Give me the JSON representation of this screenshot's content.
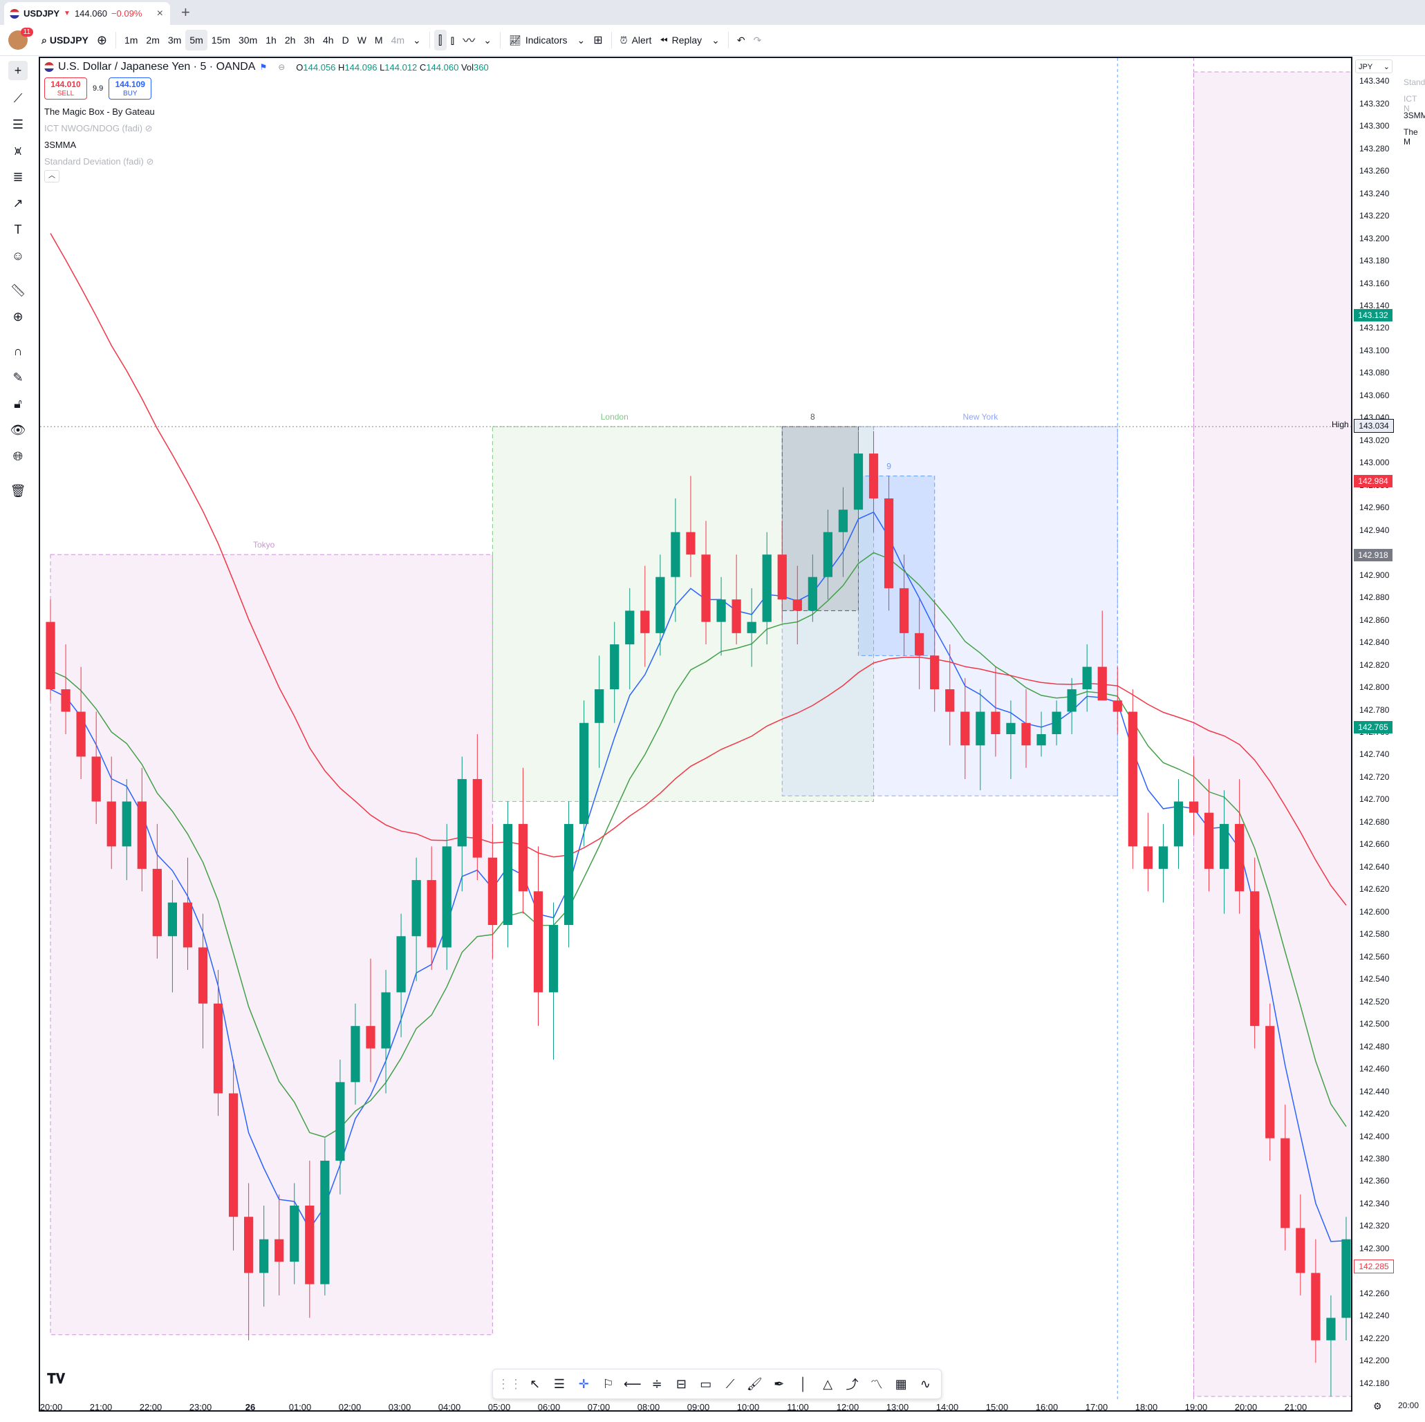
{
  "browser_tab": {
    "symbol": "USDJPY",
    "price": "144.060",
    "change": "−0.09%",
    "close": "×",
    "new_tab": "+"
  },
  "toolbar": {
    "notifications": "11",
    "symbol": "USDJPY",
    "intervals": [
      "1m",
      "2m",
      "3m",
      "5m",
      "15m",
      "30m",
      "1h",
      "2h",
      "3h",
      "4h",
      "D",
      "W",
      "M",
      "4m"
    ],
    "active_interval": "5m",
    "indicators_label": "Indicators",
    "alert_label": "Alert",
    "replay_label": "Replay"
  },
  "legend": {
    "title": "U.S. Dollar / Japanese Yen · 5 · OANDA",
    "open_label": "O",
    "open": "144.056",
    "high_label": "H",
    "high": "144.096",
    "low_label": "L",
    "low": "144.012",
    "close_label": "C",
    "close": "144.060",
    "vol_label": "Vol",
    "vol": "360",
    "sell_price": "144.010",
    "sell_label": "SELL",
    "spread": "9.9",
    "buy_price": "144.109",
    "buy_label": "BUY",
    "indicators": [
      {
        "name": "The Magic Box - By Gateau",
        "hidden": false
      },
      {
        "name": "ICT NWOG/NDOG (fadi)",
        "hidden": true
      },
      {
        "name": "3SMMA",
        "hidden": false
      },
      {
        "name": "Standard Deviation (fadi)",
        "hidden": true
      }
    ]
  },
  "session_labels": {
    "tokyo": "Tokyo",
    "london": "London",
    "new_york": "New York",
    "box_8": "8",
    "box_9": "9"
  },
  "price_axis": {
    "currency": "JPY",
    "labels": [
      "143.340",
      "143.320",
      "143.300",
      "143.280",
      "143.260",
      "143.240",
      "143.220",
      "143.200",
      "143.180",
      "143.160",
      "143.140",
      "143.120",
      "143.100",
      "143.080",
      "143.060",
      "143.040",
      "143.020",
      "143.000",
      "142.980",
      "142.960",
      "142.940",
      "142.920",
      "142.900",
      "142.880",
      "142.860",
      "142.840",
      "142.820",
      "142.800",
      "142.780",
      "142.760",
      "142.740",
      "142.720",
      "142.700",
      "142.680",
      "142.660",
      "142.640",
      "142.620",
      "142.600",
      "142.580",
      "142.560",
      "142.540",
      "142.520",
      "142.500",
      "142.480",
      "142.460",
      "142.440",
      "142.420",
      "142.400",
      "142.380",
      "142.360",
      "142.340",
      "142.320",
      "142.300",
      "142.280",
      "142.260",
      "142.240",
      "142.220",
      "142.200",
      "142.180"
    ],
    "tags": [
      {
        "value": "143.132",
        "color": "#089981"
      },
      {
        "value": "143.034",
        "color": "#e9ecf2",
        "text_color": "#131722",
        "prefix": "High"
      },
      {
        "value": "142.984",
        "color": "#f23645"
      },
      {
        "value": "142.918",
        "color": "#787b86"
      },
      {
        "value": "142.765",
        "color": "#089981"
      },
      {
        "value": "142.285",
        "color": "#ffffff",
        "text_color": "#f23645"
      }
    ]
  },
  "time_axis": [
    "20:00",
    "21:00",
    "22:00",
    "23:00",
    "26",
    "01:00",
    "02:00",
    "03:00",
    "04:00",
    "05:00",
    "06:00",
    "07:00",
    "08:00",
    "09:00",
    "10:00",
    "11:00",
    "12:00",
    "13:00",
    "14:00",
    "15:00",
    "16:00",
    "17:00",
    "18:00",
    "19:00",
    "20:00",
    "21:00"
  ],
  "right_panel": {
    "items": [
      "Stand",
      "ICT N",
      "3SMM",
      "The M"
    ],
    "time": "20:00"
  },
  "colors": {
    "up": "#089981",
    "down": "#f23645",
    "ma_red": "#f23645",
    "ma_blue": "#2962ff",
    "ma_green": "#43a047"
  },
  "chart_data": {
    "type": "candlestick",
    "symbol": "USDJPY",
    "timeframe": "5",
    "ylim": [
      142.17,
      143.35
    ],
    "x_start": "20:00",
    "bar_minutes": 5,
    "ohlc": [
      [
        142.86,
        142.88,
        142.79,
        142.8
      ],
      [
        142.8,
        142.84,
        142.76,
        142.78
      ],
      [
        142.78,
        142.82,
        142.72,
        142.74
      ],
      [
        142.74,
        142.78,
        142.68,
        142.7
      ],
      [
        142.7,
        142.74,
        142.64,
        142.66
      ],
      [
        142.66,
        142.72,
        142.63,
        142.7
      ],
      [
        142.7,
        142.73,
        142.62,
        142.64
      ],
      [
        142.64,
        142.68,
        142.56,
        142.58
      ],
      [
        142.58,
        142.63,
        142.53,
        142.61
      ],
      [
        142.61,
        142.65,
        142.55,
        142.57
      ],
      [
        142.57,
        142.6,
        142.48,
        142.52
      ],
      [
        142.52,
        142.55,
        142.42,
        142.44
      ],
      [
        142.44,
        142.47,
        142.3,
        142.33
      ],
      [
        142.33,
        142.36,
        142.22,
        142.28
      ],
      [
        142.28,
        142.34,
        142.25,
        142.31
      ],
      [
        142.31,
        142.35,
        142.26,
        142.29
      ],
      [
        142.29,
        142.36,
        142.27,
        142.34
      ],
      [
        142.34,
        142.38,
        142.24,
        142.27
      ],
      [
        142.27,
        142.4,
        142.26,
        142.38
      ],
      [
        142.38,
        142.47,
        142.35,
        142.45
      ],
      [
        142.45,
        142.52,
        142.43,
        142.5
      ],
      [
        142.5,
        142.56,
        142.45,
        142.48
      ],
      [
        142.48,
        142.55,
        142.44,
        142.53
      ],
      [
        142.53,
        142.6,
        142.49,
        142.58
      ],
      [
        142.58,
        142.65,
        142.54,
        142.63
      ],
      [
        142.63,
        142.66,
        142.55,
        142.57
      ],
      [
        142.57,
        142.68,
        142.55,
        142.66
      ],
      [
        142.66,
        142.74,
        142.62,
        142.72
      ],
      [
        142.72,
        142.76,
        142.63,
        142.65
      ],
      [
        142.65,
        142.68,
        142.56,
        142.59
      ],
      [
        142.59,
        142.7,
        142.57,
        142.68
      ],
      [
        142.68,
        142.73,
        142.6,
        142.62
      ],
      [
        142.62,
        142.66,
        142.5,
        142.53
      ],
      [
        142.53,
        142.61,
        142.47,
        142.59
      ],
      [
        142.59,
        142.7,
        142.57,
        142.68
      ],
      [
        142.68,
        142.79,
        142.66,
        142.77
      ],
      [
        142.77,
        142.83,
        142.73,
        142.8
      ],
      [
        142.8,
        142.86,
        142.77,
        142.84
      ],
      [
        142.84,
        142.89,
        142.8,
        142.87
      ],
      [
        142.87,
        142.91,
        142.82,
        142.85
      ],
      [
        142.85,
        142.92,
        142.83,
        142.9
      ],
      [
        142.9,
        142.97,
        142.86,
        142.94
      ],
      [
        142.94,
        142.99,
        142.9,
        142.92
      ],
      [
        142.92,
        142.95,
        142.84,
        142.86
      ],
      [
        142.86,
        142.9,
        142.83,
        142.88
      ],
      [
        142.88,
        142.92,
        142.84,
        142.85
      ],
      [
        142.85,
        142.89,
        142.82,
        142.86
      ],
      [
        142.86,
        142.94,
        142.84,
        142.92
      ],
      [
        142.92,
        142.95,
        142.86,
        142.88
      ],
      [
        142.88,
        142.91,
        142.84,
        142.87
      ],
      [
        142.87,
        142.92,
        142.86,
        142.9
      ],
      [
        142.9,
        142.96,
        142.88,
        142.94
      ],
      [
        142.94,
        142.98,
        142.9,
        142.96
      ],
      [
        142.96,
        143.03,
        142.93,
        143.01
      ],
      [
        143.01,
        143.03,
        142.94,
        142.97
      ],
      [
        142.97,
        142.99,
        142.87,
        142.89
      ],
      [
        142.89,
        142.92,
        142.83,
        142.85
      ],
      [
        142.85,
        142.88,
        142.8,
        142.83
      ],
      [
        142.83,
        142.88,
        142.78,
        142.8
      ],
      [
        142.8,
        142.84,
        142.75,
        142.78
      ],
      [
        142.78,
        142.81,
        142.72,
        142.75
      ],
      [
        142.75,
        142.8,
        142.71,
        142.78
      ],
      [
        142.78,
        142.82,
        142.74,
        142.76
      ],
      [
        142.76,
        142.79,
        142.72,
        142.77
      ],
      [
        142.77,
        142.8,
        142.73,
        142.75
      ],
      [
        142.75,
        142.78,
        142.74,
        142.76
      ],
      [
        142.76,
        142.79,
        142.75,
        142.78
      ],
      [
        142.78,
        142.81,
        142.76,
        142.8
      ],
      [
        142.8,
        142.84,
        142.78,
        142.82
      ],
      [
        142.82,
        142.87,
        142.8,
        142.79
      ],
      [
        142.79,
        142.82,
        142.76,
        142.78
      ],
      [
        142.78,
        142.8,
        142.64,
        142.66
      ],
      [
        142.66,
        142.69,
        142.62,
        142.64
      ],
      [
        142.64,
        142.68,
        142.61,
        142.66
      ],
      [
        142.66,
        142.72,
        142.64,
        142.7
      ],
      [
        142.7,
        142.74,
        142.67,
        142.69
      ],
      [
        142.69,
        142.72,
        142.62,
        142.64
      ],
      [
        142.64,
        142.71,
        142.6,
        142.68
      ],
      [
        142.68,
        142.72,
        142.6,
        142.62
      ],
      [
        142.62,
        142.65,
        142.48,
        142.5
      ],
      [
        142.5,
        142.52,
        142.38,
        142.4
      ],
      [
        142.4,
        142.43,
        142.3,
        142.32
      ],
      [
        142.32,
        142.35,
        142.26,
        142.28
      ],
      [
        142.28,
        142.31,
        142.2,
        142.22
      ],
      [
        142.22,
        142.26,
        142.17,
        142.24
      ],
      [
        142.24,
        142.33,
        142.22,
        142.31
      ]
    ],
    "series": [
      {
        "name": "3SMMA fast",
        "color": "#2962ff"
      },
      {
        "name": "3SMMA mid",
        "color": "#43a047"
      },
      {
        "name": "3SMMA slow",
        "color": "#f23645"
      }
    ],
    "sessions": [
      "Tokyo",
      "London",
      "New York"
    ],
    "high_line": 143.034
  }
}
